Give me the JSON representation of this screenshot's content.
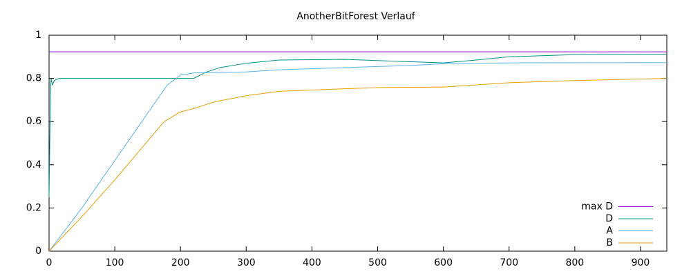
{
  "chart_data": {
    "type": "line",
    "title": "AnotherBitForest Verlauf",
    "xlim": [
      0,
      940
    ],
    "xticks": [
      0,
      100,
      200,
      300,
      400,
      500,
      600,
      700,
      800,
      900
    ],
    "ylim": [
      0,
      1
    ],
    "yticks": [
      0,
      0.2,
      0.4,
      0.6,
      0.8,
      1
    ],
    "legend": "bottom-right",
    "series": [
      {
        "name": "max D",
        "color": "#9400d3",
        "x": [
          0,
          940
        ],
        "values": [
          0.923,
          0.923
        ]
      },
      {
        "name": "D",
        "color": "#009080",
        "x": [
          0,
          2,
          3,
          5,
          8,
          15,
          100,
          220,
          240,
          260,
          300,
          350,
          450,
          520,
          600,
          650,
          700,
          800,
          940
        ],
        "values": [
          0.25,
          0.7,
          0.8,
          0.77,
          0.79,
          0.8,
          0.8,
          0.8,
          0.83,
          0.85,
          0.87,
          0.885,
          0.888,
          0.88,
          0.872,
          0.885,
          0.9,
          0.91,
          0.912
        ]
      },
      {
        "name": "A",
        "color": "#56b4e9",
        "x": [
          0,
          50,
          100,
          180,
          200,
          220,
          300,
          350,
          450,
          550,
          600,
          700,
          940
        ],
        "values": [
          0,
          0.2,
          0.42,
          0.77,
          0.815,
          0.825,
          0.83,
          0.84,
          0.85,
          0.86,
          0.868,
          0.872,
          0.873
        ]
      },
      {
        "name": "B",
        "color": "#e69f00",
        "x": [
          0,
          50,
          100,
          175,
          200,
          220,
          250,
          300,
          350,
          450,
          500,
          600,
          700,
          800,
          940
        ],
        "values": [
          0,
          0.16,
          0.33,
          0.6,
          0.645,
          0.66,
          0.69,
          0.72,
          0.74,
          0.752,
          0.757,
          0.76,
          0.78,
          0.79,
          0.8
        ]
      }
    ]
  }
}
